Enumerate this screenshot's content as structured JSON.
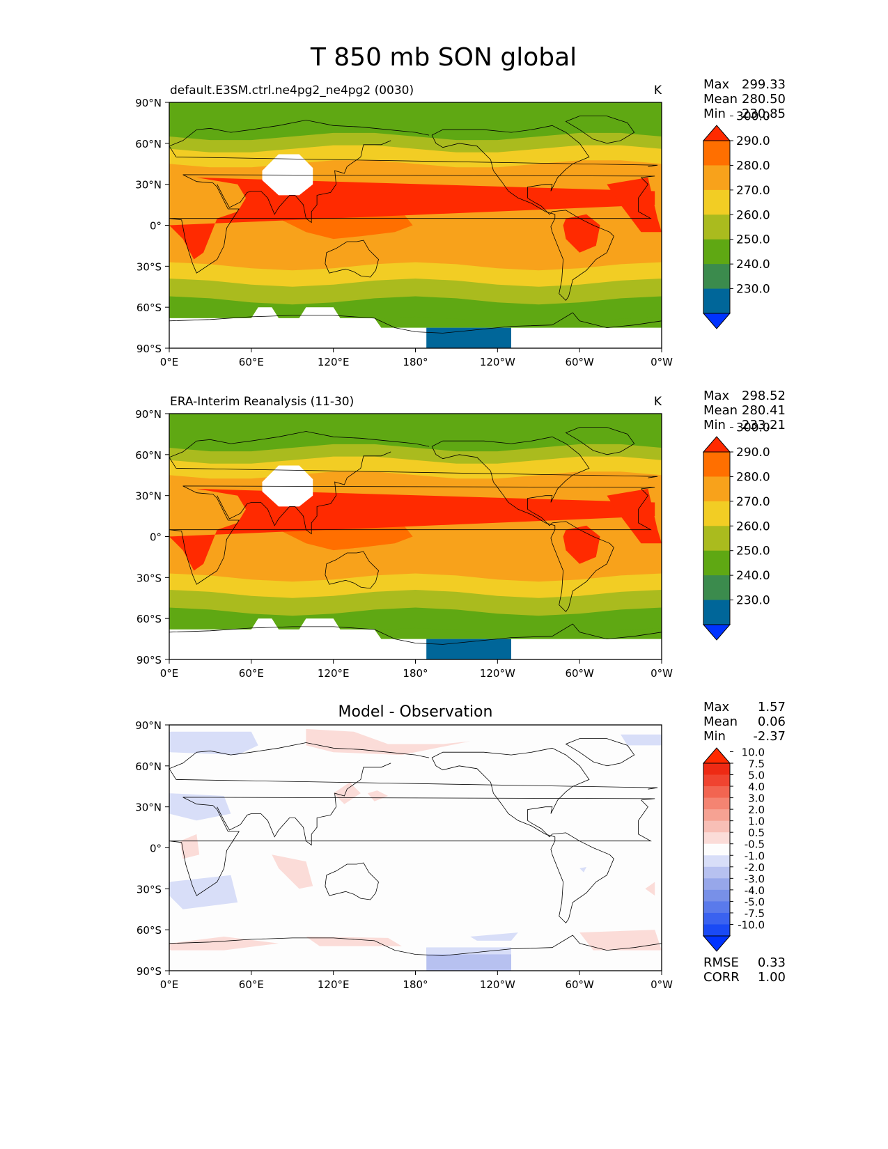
{
  "figure": {
    "title": "T 850 mb SON global"
  },
  "chart_data": [
    {
      "type": "heatmap",
      "panel": "test",
      "title_left": "default.E3SM.ctrl.ne4pg2_ne4pg2 (0030)",
      "title_right": "K",
      "stats": [
        {
          "label": "Max",
          "value": "299.33"
        },
        {
          "label": "Mean",
          "value": "280.50"
        },
        {
          "label": "Min",
          "value": "230.85"
        }
      ],
      "x_ticks": [
        "0°E",
        "60°E",
        "120°E",
        "180°",
        "120°W",
        "60°W",
        "0°W"
      ],
      "y_ticks": [
        "90°N",
        "60°N",
        "30°N",
        "0°",
        "30°S",
        "60°S",
        "90°S"
      ],
      "colorbar": {
        "levels": [
          "230.0",
          "240.0",
          "250.0",
          "260.0",
          "270.0",
          "280.0",
          "290.0",
          "300.0"
        ],
        "colors": [
          "#0033ff",
          "#006699",
          "#3b8b4d",
          "#5fa813",
          "#aabb1e",
          "#f2cd24",
          "#f8a21b",
          "#ff6f00",
          "#ff2a00"
        ],
        "extend": "both"
      },
      "fields": [
        {
          "value": 300.5,
          "where": "Sahara, Arabia"
        },
        {
          "value": 300.0,
          "where": "Amazon"
        },
        {
          "value": 298.0,
          "where": "western tropical Pacific"
        },
        {
          "value": 285.0,
          "where": "tropics"
        },
        {
          "value": 274.0,
          "where": "midlatitudes"
        },
        {
          "value": 262.0,
          "where": "subpolar"
        },
        {
          "value": 254.0,
          "where": "polar"
        },
        {
          "value": 232.0,
          "where": "Antarctica (Pacific sector)"
        }
      ]
    },
    {
      "type": "heatmap",
      "panel": "reference",
      "title_left": "ERA-Interim Reanalysis (11-30)",
      "title_right": "K",
      "stats": [
        {
          "label": "Max",
          "value": "298.52"
        },
        {
          "label": "Mean",
          "value": "280.41"
        },
        {
          "label": "Min",
          "value": "233.21"
        }
      ],
      "x_ticks": [
        "0°E",
        "60°E",
        "120°E",
        "180°",
        "120°W",
        "60°W",
        "0°W"
      ],
      "y_ticks": [
        "90°N",
        "60°N",
        "30°N",
        "0°",
        "30°S",
        "60°S",
        "90°S"
      ],
      "colorbar": {
        "levels": [
          "230.0",
          "240.0",
          "250.0",
          "260.0",
          "270.0",
          "280.0",
          "290.0",
          "300.0"
        ],
        "colors": [
          "#0033ff",
          "#006699",
          "#3b8b4d",
          "#5fa813",
          "#aabb1e",
          "#f2cd24",
          "#f8a21b",
          "#ff6f00",
          "#ff2a00"
        ],
        "extend": "both"
      },
      "fields": [
        {
          "value": 300.5,
          "where": "Sahara, Arabia"
        },
        {
          "value": 300.0,
          "where": "Amazon"
        },
        {
          "value": 298.0,
          "where": "western tropical Pacific"
        },
        {
          "value": 285.0,
          "where": "tropics"
        },
        {
          "value": 274.0,
          "where": "midlatitudes"
        },
        {
          "value": 262.0,
          "where": "subpolar"
        },
        {
          "value": 254.0,
          "where": "polar"
        },
        {
          "value": 233.0,
          "where": "Antarctica (Pacific sector)"
        }
      ]
    },
    {
      "type": "heatmap",
      "panel": "difference",
      "title_center": "Model - Observation",
      "stats": [
        {
          "label": "Max",
          "value": "1.57"
        },
        {
          "label": "Mean",
          "value": "0.06"
        },
        {
          "label": "Min",
          "value": "-2.37"
        }
      ],
      "extra_stats": [
        {
          "label": "RMSE",
          "value": "0.33"
        },
        {
          "label": "CORR",
          "value": "1.00"
        }
      ],
      "x_ticks": [
        "0°E",
        "60°E",
        "120°E",
        "180°",
        "120°W",
        "60°W",
        "0°W"
      ],
      "y_ticks": [
        "90°N",
        "60°N",
        "30°N",
        "0°",
        "30°S",
        "60°S",
        "90°S"
      ],
      "colorbar": {
        "levels": [
          "-10.0",
          "-7.5",
          "-5.0",
          "-4.0",
          "-3.0",
          "-2.0",
          "-1.0",
          "-0.5",
          "0.5",
          "1.0",
          "2.0",
          "3.0",
          "4.0",
          "5.0",
          "7.5",
          "10.0"
        ],
        "colors": [
          "#0033ff",
          "#1a4af5",
          "#3a62f0",
          "#5a7aeb",
          "#7890e8",
          "#97a7ea",
          "#b7c1f0",
          "#d8def8",
          "#fdfdfd",
          "#fbdcd8",
          "#f8bfb6",
          "#f6a293",
          "#f48472",
          "#f26551",
          "#f04430",
          "#ee2a14",
          "#ff2a00"
        ],
        "extend": "both"
      },
      "fields": [
        {
          "value": 0.9,
          "where": "North Pacific / Siberia"
        },
        {
          "value": 0.8,
          "where": "Africa, Indian Ocean, Southern Ocean"
        },
        {
          "value": -0.7,
          "where": "Arctic, South Atlantic"
        },
        {
          "value": -2.0,
          "where": "Antarctica (Pacific sector)"
        }
      ]
    }
  ]
}
